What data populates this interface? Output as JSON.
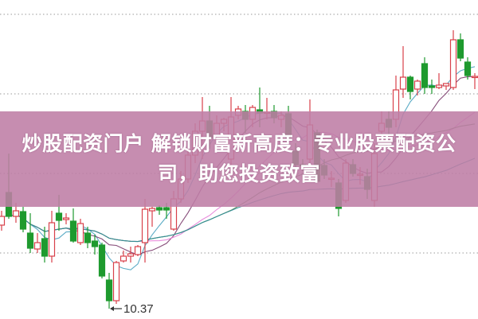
{
  "banner": {
    "title": "炒股配资门户 解锁财富新高度：专业股票配资公司，助您投资致富"
  },
  "chart_data": {
    "type": "candlestick",
    "ylim": [
      10.24,
      14.25
    ],
    "grid": true,
    "gridlines": [
      14.07,
      13.07,
      12.07,
      11.07
    ],
    "up_color": "#d8404a",
    "down_color": "#1e9a2e",
    "annotation": {
      "text": "10.37",
      "candle_index": 15,
      "value": 10.37
    },
    "moving_averages": [
      {
        "period": 5,
        "color": "#4aa3c0"
      },
      {
        "period": 10,
        "color": "#7a3a6c"
      },
      {
        "period": 20,
        "color": "#e680d8"
      },
      {
        "period": 30,
        "color": "#4e7d4a"
      },
      {
        "period": 60,
        "color": "#2f8f9a"
      }
    ],
    "candles": [
      [
        11.42,
        11.6,
        11.35,
        11.53
      ],
      [
        11.83,
        12.32,
        11.5,
        11.53
      ],
      [
        11.53,
        11.7,
        11.45,
        11.6
      ],
      [
        11.59,
        11.65,
        11.33,
        11.37
      ],
      [
        11.32,
        11.57,
        11.07,
        11.13
      ],
      [
        11.12,
        11.32,
        11.07,
        11.2
      ],
      [
        11.25,
        11.4,
        10.95,
        11.03
      ],
      [
        11.03,
        11.6,
        10.95,
        11.45
      ],
      [
        11.57,
        11.8,
        11.35,
        11.48
      ],
      [
        11.49,
        11.57,
        11.43,
        11.51
      ],
      [
        11.47,
        11.63,
        11.2,
        11.22
      ],
      [
        11.2,
        11.5,
        11.17,
        11.44
      ],
      [
        11.32,
        11.4,
        11.13,
        11.2
      ],
      [
        11.22,
        11.3,
        11.05,
        11.15
      ],
      [
        11.17,
        11.2,
        10.75,
        10.78
      ],
      [
        10.73,
        10.82,
        10.37,
        10.47
      ],
      [
        10.47,
        10.97,
        10.43,
        10.95
      ],
      [
        10.97,
        11.1,
        10.95,
        11.03
      ],
      [
        11.03,
        11.15,
        10.95,
        11.06
      ],
      [
        11.05,
        11.17,
        11.03,
        11.15
      ],
      [
        11.2,
        11.75,
        10.95,
        11.62
      ],
      [
        11.6,
        11.65,
        11.4,
        11.63
      ],
      [
        11.64,
        11.67,
        11.55,
        11.61
      ],
      [
        11.64,
        11.7,
        11.5,
        11.61
      ],
      [
        11.37,
        11.85,
        11.35,
        11.75
      ],
      [
        11.75,
        12.1,
        11.7,
        12.0
      ],
      [
        12.0,
        12.4,
        11.95,
        12.3
      ],
      [
        12.3,
        12.7,
        12.2,
        12.6
      ],
      [
        12.6,
        13.03,
        12.25,
        12.73
      ],
      [
        12.73,
        12.92,
        12.38,
        12.52
      ],
      [
        12.55,
        12.8,
        12.45,
        12.7
      ],
      [
        12.7,
        12.77,
        12.6,
        12.75
      ],
      [
        12.25,
        13.03,
        12.08,
        12.78
      ],
      [
        12.8,
        12.92,
        12.75,
        12.88
      ],
      [
        12.85,
        12.93,
        12.58,
        12.75
      ],
      [
        12.75,
        12.93,
        12.65,
        12.9
      ],
      [
        12.87,
        13.15,
        12.65,
        12.83
      ],
      [
        12.83,
        13.02,
        12.75,
        12.84
      ],
      [
        12.85,
        12.93,
        12.7,
        12.77
      ],
      [
        12.75,
        12.85,
        12.65,
        12.8
      ],
      [
        12.82,
        12.92,
        12.48,
        12.52
      ],
      [
        12.35,
        12.45,
        12.15,
        12.18
      ],
      [
        12.18,
        12.25,
        12.1,
        12.17
      ],
      [
        12.25,
        13.0,
        12.15,
        12.68
      ],
      [
        12.58,
        12.62,
        11.97,
        11.97
      ],
      [
        12.17,
        12.25,
        12.0,
        12.05
      ],
      [
        12.0,
        12.1,
        11.9,
        12.01
      ],
      [
        11.95,
        12.0,
        11.53,
        11.63
      ],
      [
        11.73,
        12.25,
        11.7,
        12.2
      ],
      [
        12.18,
        12.25,
        12.03,
        12.07
      ],
      [
        12.05,
        12.15,
        11.93,
        12.06
      ],
      [
        12.03,
        12.13,
        11.75,
        11.87
      ],
      [
        11.73,
        12.45,
        11.65,
        12.32
      ],
      [
        12.6,
        12.85,
        12.55,
        12.7
      ],
      [
        12.75,
        12.85,
        12.55,
        12.65
      ],
      [
        12.75,
        13.3,
        12.65,
        13.12
      ],
      [
        13.13,
        13.67,
        13.02,
        13.28
      ],
      [
        13.28,
        13.3,
        13.0,
        13.1
      ],
      [
        13.13,
        13.25,
        13.05,
        13.23
      ],
      [
        13.45,
        13.53,
        13.07,
        13.15
      ],
      [
        13.17,
        13.25,
        13.07,
        13.15
      ],
      [
        13.15,
        13.33,
        13.13,
        13.18
      ],
      [
        13.17,
        13.2,
        13.12,
        13.2
      ],
      [
        13.15,
        13.87,
        13.12,
        13.75
      ],
      [
        13.75,
        13.83,
        13.48,
        13.52
      ],
      [
        13.47,
        13.53,
        13.25,
        13.3
      ],
      [
        13.28,
        13.33,
        13.13,
        13.29
      ]
    ]
  }
}
